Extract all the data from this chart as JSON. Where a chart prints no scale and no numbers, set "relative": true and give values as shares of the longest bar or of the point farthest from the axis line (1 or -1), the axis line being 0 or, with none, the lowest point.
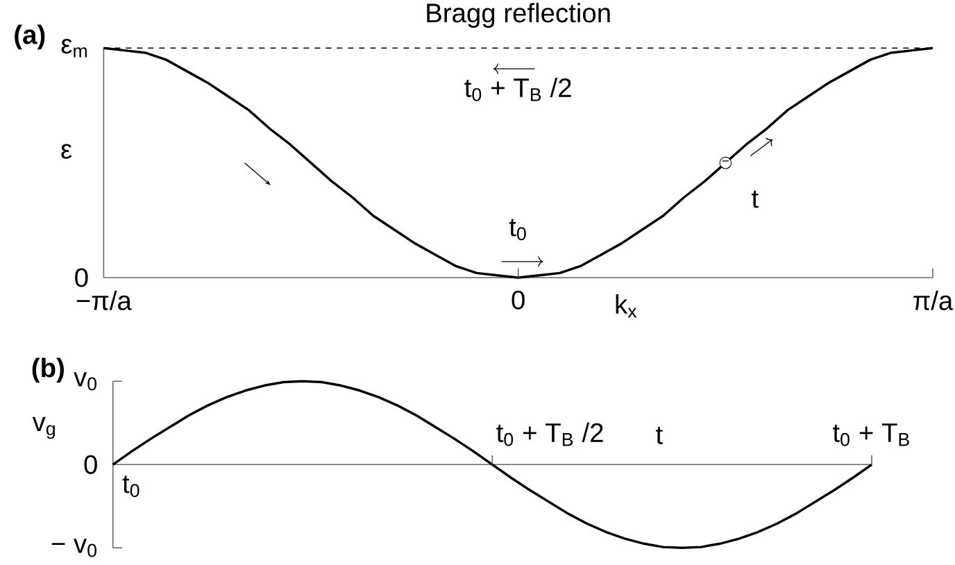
{
  "chart_data": [
    {
      "type": "line",
      "relative": true,
      "title": "(a)",
      "xlabel": "k$_{x}$",
      "ylabel": "ε",
      "categories": [
        null,
        null,
        null,
        null,
        null,
        null,
        null,
        null,
        null,
        null,
        null,
        null,
        null,
        null,
        null,
        null,
        null,
        null,
        null,
        null,
        null,
        null,
        null,
        null,
        null,
        null,
        null,
        null,
        null,
        null,
        null,
        null,
        null,
        null,
        null,
        null,
        null,
        null,
        null,
        null,
        null
      ],
      "series": [
        {
          "color": "#000000",
          "values": [
            1,
            0.99,
            0.98,
            0.95,
            0.9,
            0.85,
            0.79,
            0.73,
            0.65,
            0.58,
            0.5,
            0.42,
            0.35,
            0.27,
            0.21,
            0.15,
            0.1,
            0.05,
            0.02,
            0.01,
            0,
            0.01,
            0.02,
            0.05,
            0.1,
            0.15,
            0.21,
            0.27,
            0.35,
            0.42,
            0.5,
            0.58,
            0.65,
            0.73,
            0.79,
            0.85,
            0.9,
            0.95,
            0.98,
            0.99,
            1
          ]
        }
      ],
      "ref_lines": [
        {
          "axis": "y",
          "value": 1,
          "label": "Bragg reflection",
          "line_style": "dashed"
        }
      ],
      "annotations": [
        "−π/a",
        "0",
        "π/a",
        "0",
        "ε$_{m}$",
        "t$_{0}$ + T$_{B}$ /2",
        "t$_{0}$",
        "t",
        "−"
      ]
    },
    {
      "type": "line",
      "relative": true,
      "title": "(b)",
      "xlabel": "t",
      "ylabel": "v$_{g}$",
      "categories": [
        null,
        null,
        null,
        null,
        null,
        null,
        null,
        null,
        null,
        null,
        null,
        null,
        null,
        null,
        null,
        null,
        null,
        null,
        null,
        null,
        null,
        null,
        null,
        null,
        null,
        null,
        null,
        null,
        null,
        null,
        null,
        null,
        null,
        null,
        null,
        null,
        null,
        null,
        null,
        null,
        null
      ],
      "series": [
        {
          "color": "#000000",
          "values": [
            0,
            0.16,
            0.31,
            0.45,
            0.59,
            0.71,
            0.81,
            0.89,
            0.95,
            0.99,
            1,
            0.99,
            0.95,
            0.89,
            0.81,
            0.71,
            0.59,
            0.45,
            0.31,
            0.16,
            0,
            -0.16,
            -0.31,
            -0.45,
            -0.59,
            -0.71,
            -0.81,
            -0.89,
            -0.95,
            -0.99,
            -1,
            -0.99,
            -0.95,
            -0.89,
            -0.81,
            -0.71,
            -0.59,
            -0.45,
            -0.31,
            -0.16,
            0
          ]
        }
      ],
      "annotations": [
        "t$_{0}$",
        "t$_{0}$ + T$_{B}$ /2",
        "t$_{0}$ + T$_{B}$",
        "v$_{0}$",
        "0",
        "− v$_{0}$"
      ]
    }
  ]
}
